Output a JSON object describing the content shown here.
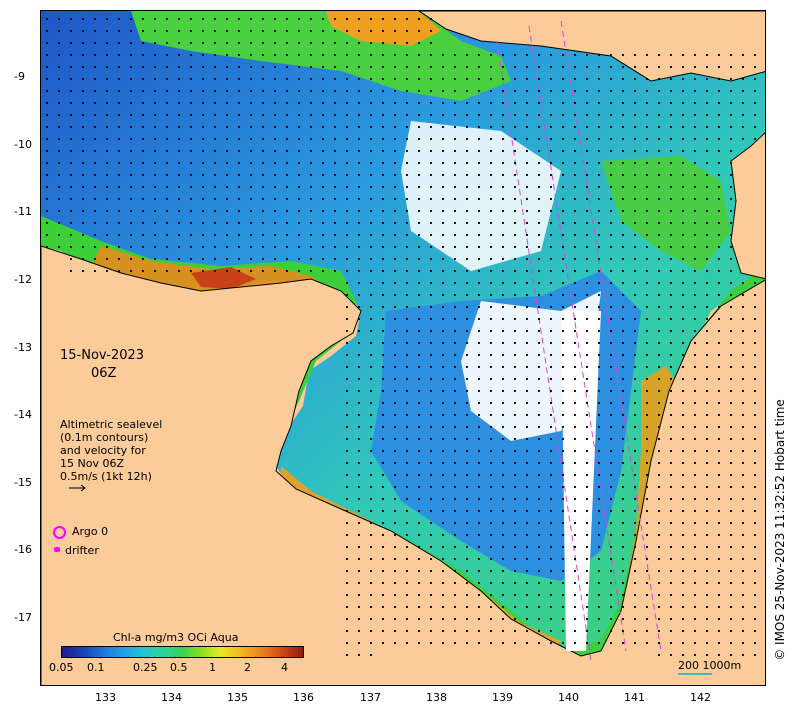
{
  "map": {
    "title_date": "15-Nov-2023",
    "title_time": "06Z",
    "land_color": "#fccb9a",
    "lat_labels": [
      "-9",
      "-10",
      "-11",
      "-12",
      "-13",
      "-14",
      "-15",
      "-16",
      "-17"
    ],
    "lon_labels": [
      "133",
      "134",
      "135",
      "136",
      "137",
      "138",
      "139",
      "140",
      "141",
      "142"
    ]
  },
  "legend": {
    "altimetry_lines": [
      "Altimetric sealevel",
      "(0.1m contours)",
      "and velocity for",
      "15 Nov 06Z",
      "0.5m/s (1kt 12h)"
    ],
    "argo_label": "Argo 0",
    "drifter_label": "drifter",
    "argo_color": "#ff00ff"
  },
  "colorbar": {
    "title": "Chl-a mg/m3 OCi Aqua",
    "ticks": [
      "0.05",
      "0.1",
      "0.25",
      "0.5",
      "1",
      "2",
      "4"
    ]
  },
  "scale": {
    "label": "200  1000m"
  },
  "copyright": "© IMOS 25-Nov-2023 11:32:52 Hobart time"
}
